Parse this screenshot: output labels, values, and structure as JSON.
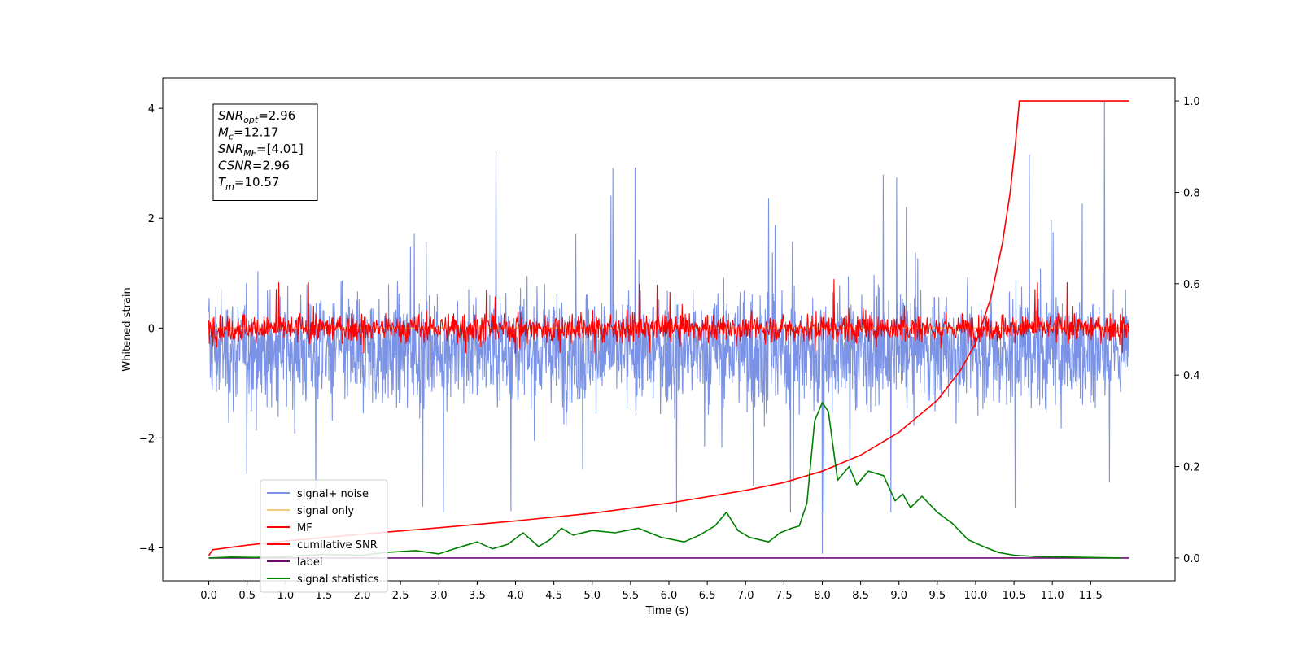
{
  "chart_data": {
    "type": "line",
    "title": "",
    "xlabel": "Time (s)",
    "ylabel": "Whitened strain",
    "y2label": "",
    "xlim": [
      -0.6,
      12.6
    ],
    "ylim": [
      -4.6,
      4.55
    ],
    "y2lim": [
      -0.05,
      1.05
    ],
    "x_ticks": [
      0.0,
      0.5,
      1.0,
      1.5,
      2.0,
      2.5,
      3.0,
      3.5,
      4.0,
      4.5,
      5.0,
      5.5,
      6.0,
      6.5,
      7.0,
      7.5,
      8.0,
      8.5,
      9.0,
      9.5,
      10.0,
      10.5,
      11.0,
      11.5
    ],
    "x_tick_labels": [
      "0.0",
      "0.5",
      "1.0",
      "1.5",
      "2.0",
      "2.5",
      "3.0",
      "3.5",
      "4.0",
      "4.5",
      "5.0",
      "5.5",
      "6.0",
      "6.5",
      "7.0",
      "7.5",
      "8.0",
      "8.5",
      "9.0",
      "9.5",
      "10.0",
      "10.5",
      "11.0",
      "11.5"
    ],
    "y_ticks": [
      -4,
      -2,
      0,
      2,
      4
    ],
    "y_tick_labels": [
      "−4",
      "−2",
      "0",
      "2",
      "4"
    ],
    "y2_ticks": [
      0.0,
      0.2,
      0.4,
      0.6,
      0.8,
      1.0
    ],
    "y2_tick_labels": [
      "0.0",
      "0.2",
      "0.4",
      "0.6",
      "0.8",
      "1.0"
    ],
    "grid": false,
    "legend_position": "lower-left",
    "annotation": {
      "lines": [
        {
          "main": "SNR",
          "sub": "opt",
          "value": "=2.96"
        },
        {
          "main": "M",
          "sub": "c",
          "value": "=12.17"
        },
        {
          "main": "SNR",
          "sub": "MF",
          "value": "=[4.01]"
        },
        {
          "main": "CSNR",
          "sub": "",
          "value": "=2.96"
        },
        {
          "main": "T",
          "sub": "m",
          "value": "=10.57"
        }
      ]
    },
    "series": [
      {
        "name": "signal+ noise",
        "axis": "left",
        "color": "#7a93e6",
        "style": "noise",
        "x_range": [
          0.0,
          12.0
        ],
        "center": -0.4,
        "typical_range": [
          -1.8,
          1.5
        ],
        "extremes": [
          -3.35,
          3.4
        ],
        "spike": {
          "x": 8.0,
          "y": -4.1
        },
        "peak": {
          "x": 11.68,
          "y": 4.1
        }
      },
      {
        "name": "signal only",
        "axis": "left",
        "color": "#f5c97a",
        "style": "line",
        "x": [
          0.0,
          12.0
        ],
        "y": [
          0.0,
          0.0
        ]
      },
      {
        "name": "MF",
        "axis": "left",
        "color": "#ff0000",
        "style": "noise",
        "x_range": [
          0.0,
          12.0
        ],
        "center": 0.0,
        "typical_range": [
          -0.35,
          0.45
        ],
        "extremes": [
          -0.45,
          0.95
        ]
      },
      {
        "name": "cumilative SNR",
        "axis": "right",
        "color": "#ff0000",
        "style": "line",
        "x": [
          0.0,
          0.05,
          0.5,
          1.0,
          2.0,
          3.0,
          4.0,
          5.0,
          6.0,
          7.0,
          7.5,
          8.0,
          8.5,
          9.0,
          9.5,
          9.8,
          10.0,
          10.2,
          10.35,
          10.45,
          10.52,
          10.57,
          11.0,
          11.5,
          12.0
        ],
        "y": [
          0.005,
          0.018,
          0.028,
          0.037,
          0.052,
          0.066,
          0.081,
          0.098,
          0.12,
          0.148,
          0.165,
          0.19,
          0.225,
          0.275,
          0.345,
          0.41,
          0.47,
          0.57,
          0.69,
          0.8,
          0.91,
          1.0,
          1.0,
          1.0,
          1.0
        ]
      },
      {
        "name": "label",
        "axis": "right",
        "color": "#6b0a72",
        "style": "line",
        "x": [
          0.0,
          12.0
        ],
        "y": [
          0.0,
          0.0
        ]
      },
      {
        "name": "signal statistics",
        "axis": "right",
        "color": "#008000",
        "style": "line",
        "x": [
          0.0,
          0.3,
          0.6,
          1.0,
          1.5,
          2.0,
          2.3,
          2.7,
          3.0,
          3.2,
          3.5,
          3.7,
          3.9,
          4.1,
          4.3,
          4.45,
          4.6,
          4.75,
          5.0,
          5.3,
          5.6,
          5.9,
          6.2,
          6.4,
          6.6,
          6.75,
          6.9,
          7.05,
          7.3,
          7.45,
          7.6,
          7.7,
          7.8,
          7.9,
          8.0,
          8.08,
          8.2,
          8.35,
          8.45,
          8.6,
          8.8,
          8.95,
          9.05,
          9.15,
          9.3,
          9.5,
          9.7,
          9.9,
          10.1,
          10.3,
          10.5,
          10.8,
          11.2,
          11.5,
          11.9
        ],
        "y": [
          0.0,
          0.002,
          0.001,
          0.003,
          0.008,
          0.006,
          0.012,
          0.016,
          0.009,
          0.02,
          0.035,
          0.02,
          0.03,
          0.055,
          0.025,
          0.04,
          0.065,
          0.05,
          0.06,
          0.055,
          0.065,
          0.045,
          0.035,
          0.05,
          0.07,
          0.1,
          0.06,
          0.045,
          0.035,
          0.055,
          0.065,
          0.07,
          0.12,
          0.3,
          0.34,
          0.32,
          0.17,
          0.2,
          0.16,
          0.19,
          0.18,
          0.125,
          0.14,
          0.11,
          0.135,
          0.1,
          0.075,
          0.04,
          0.025,
          0.012,
          0.006,
          0.003,
          0.002,
          0.001,
          0.0
        ]
      }
    ]
  }
}
